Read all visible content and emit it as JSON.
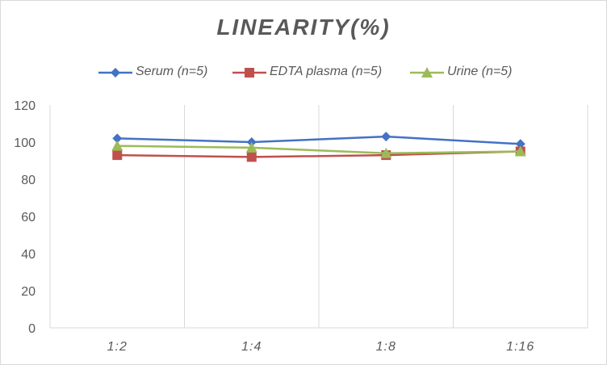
{
  "chart_data": {
    "type": "line",
    "title": "LINEARITY(%)",
    "xlabel": "",
    "ylabel": "",
    "categories": [
      "1:2",
      "1:4",
      "1:8",
      "1:16"
    ],
    "ylim": [
      0,
      120
    ],
    "yticks": [
      0,
      20,
      40,
      60,
      80,
      100,
      120
    ],
    "grid": "vertical gridlines between categories",
    "legend_position": "top",
    "series": [
      {
        "name": "Serum (n=5)",
        "values": [
          102,
          100,
          103,
          99
        ],
        "color": "#4472c4",
        "marker": "diamond"
      },
      {
        "name": "EDTA plasma (n=5)",
        "values": [
          93,
          92,
          93,
          95
        ],
        "color": "#c0504d",
        "marker": "square"
      },
      {
        "name": "Urine (n=5)",
        "values": [
          98,
          97,
          94,
          95
        ],
        "color": "#9bbb59",
        "marker": "triangle"
      }
    ]
  }
}
